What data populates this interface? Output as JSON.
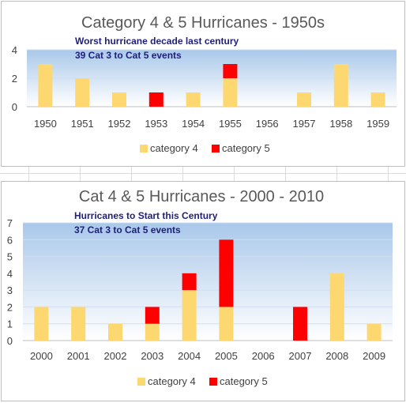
{
  "colors": {
    "category_4": "#fdd870",
    "category_5": "#ff0000",
    "plot_top": "#a9c8ea",
    "plot_bottom": "#ffffff",
    "gridline": "#d0dff0",
    "sheet_grid": "#dadada"
  },
  "chart_data": [
    {
      "type": "bar",
      "stacked": true,
      "title": "Category 4 & 5 Hurricanes - 1950s",
      "annotations": [
        "Worst hurricane decade last century",
        "39 Cat 3 to Cat 5 events"
      ],
      "categories": [
        "1950",
        "1951",
        "1952",
        "1953",
        "1954",
        "1955",
        "1956",
        "1957",
        "1958",
        "1959"
      ],
      "series": [
        {
          "name": "category 4",
          "values": [
            3,
            2,
            1,
            0,
            1,
            2,
            0,
            1,
            3,
            1
          ]
        },
        {
          "name": "category 5",
          "values": [
            0,
            0,
            0,
            1,
            0,
            1,
            0,
            0,
            0,
            0
          ]
        }
      ],
      "ylim": [
        0,
        4
      ],
      "yticks": [
        0,
        2,
        4
      ],
      "xlabel": "",
      "ylabel": "",
      "grid": true,
      "legend": "bottom"
    },
    {
      "type": "bar",
      "stacked": true,
      "title": "Cat 4 & 5 Hurricanes - 2000 - 2010",
      "annotations": [
        "Hurricanes to Start this Century",
        "37 Cat 3 to Cat 5 events"
      ],
      "categories": [
        "2000",
        "2001",
        "2002",
        "2003",
        "2004",
        "2005",
        "2006",
        "2007",
        "2008",
        "2009"
      ],
      "series": [
        {
          "name": "category 4",
          "values": [
            2,
            2,
            1,
            1,
            3,
            2,
            0,
            0,
            4,
            1
          ]
        },
        {
          "name": "category 5",
          "values": [
            0,
            0,
            0,
            1,
            1,
            4,
            0,
            2,
            0,
            0
          ]
        }
      ],
      "ylim": [
        0,
        7
      ],
      "yticks": [
        0,
        1,
        2,
        3,
        4,
        5,
        6,
        7
      ],
      "xlabel": "",
      "ylabel": "",
      "grid": true,
      "legend": "bottom"
    }
  ]
}
